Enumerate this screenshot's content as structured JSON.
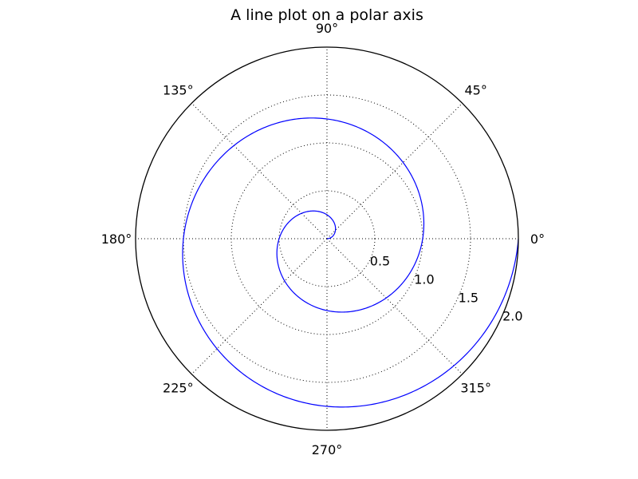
{
  "chart_data": {
    "type": "line",
    "projection": "polar",
    "title": "A line plot on a polar axis",
    "r_ticks": [
      0.5,
      1.0,
      1.5,
      2.0
    ],
    "r_tick_labels": [
      "0.5",
      "1.0",
      "1.5",
      "2.0"
    ],
    "rlim": [
      0,
      2.0
    ],
    "theta_ticks_deg": [
      0,
      45,
      90,
      135,
      180,
      225,
      270,
      315
    ],
    "theta_tick_labels": [
      "0°",
      "45°",
      "90°",
      "135°",
      "180°",
      "225°",
      "270°",
      "315°"
    ],
    "grid": true,
    "grid_style": "dotted",
    "series": [
      {
        "color": "#0000ff",
        "r_range": [
          0,
          2.0
        ],
        "theta_range_rad": [
          0,
          12.566
        ],
        "relation": "theta = 2*pi*r"
      }
    ]
  }
}
